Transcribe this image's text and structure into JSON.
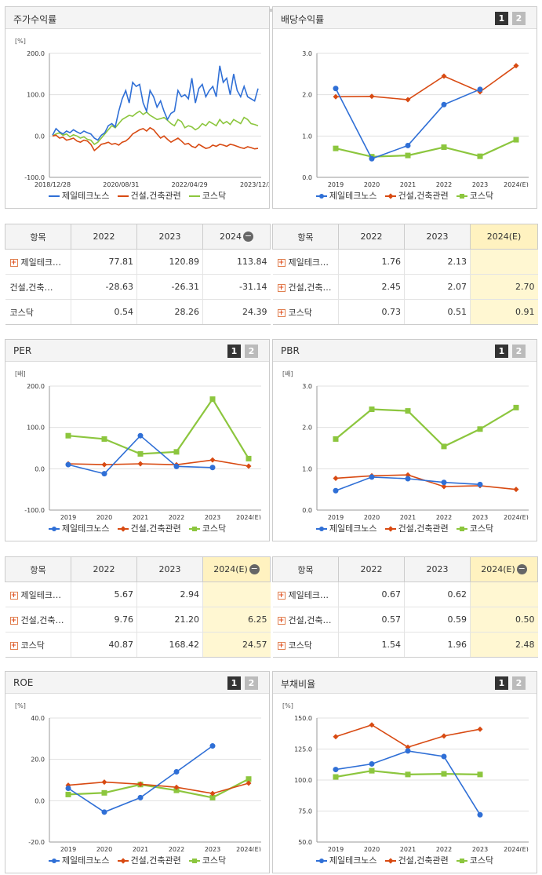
{
  "colors": {
    "jeil": "#2f6fd6",
    "const": "#d84a12",
    "kosdaq": "#8cc63e"
  },
  "series_names": [
    "제일테크노스",
    "건설,건축관련",
    "코스닥"
  ],
  "charts": [
    {
      "id": "price",
      "title": "주가수익률",
      "unit": "[%]",
      "pager": false,
      "type": "line",
      "ylim": [
        -100,
        200
      ],
      "yticks": [
        "200.0",
        "100.0",
        "0.0",
        "-100.0"
      ],
      "xticks": [
        "2018/12/28",
        "2020/08/31",
        "2022/04/29",
        "2023/12/28"
      ],
      "x_count": 60,
      "series": [
        {
          "name": "제일테크노스",
          "values": [
            2,
            18,
            10,
            5,
            12,
            8,
            15,
            10,
            6,
            12,
            8,
            5,
            -5,
            -10,
            2,
            8,
            25,
            30,
            22,
            60,
            90,
            110,
            80,
            130,
            120,
            125,
            80,
            60,
            110,
            95,
            70,
            85,
            60,
            40,
            55,
            60,
            110,
            95,
            100,
            90,
            140,
            80,
            115,
            125,
            95,
            110,
            120,
            95,
            170,
            130,
            140,
            100,
            150,
            110,
            95,
            120,
            95,
            90,
            85,
            115
          ]
        },
        {
          "name": "건설,건축관련",
          "values": [
            0,
            2,
            -5,
            -3,
            -10,
            -8,
            -5,
            -12,
            -15,
            -10,
            -12,
            -20,
            -35,
            -28,
            -20,
            -18,
            -15,
            -20,
            -18,
            -22,
            -15,
            -12,
            -5,
            5,
            10,
            15,
            18,
            12,
            20,
            15,
            5,
            -5,
            0,
            -8,
            -15,
            -10,
            -5,
            -12,
            -20,
            -18,
            -25,
            -28,
            -20,
            -25,
            -30,
            -28,
            -22,
            -25,
            -20,
            -22,
            -25,
            -20,
            -22,
            -25,
            -28,
            -30,
            -26,
            -28,
            -31,
            -30
          ]
        },
        {
          "name": "코스닥",
          "values": [
            0,
            5,
            8,
            2,
            5,
            -2,
            3,
            0,
            -5,
            -2,
            -8,
            -10,
            -20,
            -15,
            -5,
            5,
            15,
            25,
            20,
            30,
            40,
            45,
            50,
            48,
            55,
            60,
            52,
            58,
            50,
            45,
            40,
            42,
            45,
            38,
            30,
            25,
            40,
            35,
            20,
            25,
            22,
            15,
            20,
            30,
            25,
            35,
            30,
            25,
            40,
            30,
            35,
            28,
            40,
            35,
            30,
            45,
            40,
            30,
            28,
            25
          ]
        }
      ]
    },
    {
      "id": "div",
      "title": "배당수익률",
      "unit": "",
      "pager": true,
      "type": "line-dots",
      "ylim": [
        0,
        3
      ],
      "yticks": [
        "3.0",
        "2.0",
        "1.0",
        "0.0"
      ],
      "xticks": [
        "2019",
        "2020",
        "2021",
        "2022",
        "2023",
        "2024(E)"
      ],
      "series": [
        {
          "name": "제일테크노스",
          "values": [
            2.15,
            0.45,
            0.77,
            1.76,
            2.13,
            null
          ]
        },
        {
          "name": "건설,건축관련",
          "values": [
            1.95,
            1.96,
            1.88,
            2.45,
            2.07,
            2.7
          ]
        },
        {
          "name": "코스닥",
          "values": [
            0.7,
            0.5,
            0.53,
            0.73,
            0.51,
            0.91
          ]
        }
      ]
    },
    {
      "id": "per",
      "title": "PER",
      "unit": "[배]",
      "pager": true,
      "type": "line-dots",
      "ylim": [
        -100,
        200
      ],
      "yticks": [
        "200.0",
        "100.0",
        "0.0",
        "-100.0"
      ],
      "xticks": [
        "2019",
        "2020",
        "2021",
        "2022",
        "2023",
        "2024(E)"
      ],
      "series": [
        {
          "name": "제일테크노스",
          "values": [
            10,
            -12,
            80,
            5.67,
            2.94,
            null
          ]
        },
        {
          "name": "건설,건축관련",
          "values": [
            12,
            10,
            12,
            9.76,
            21.2,
            6.25
          ]
        },
        {
          "name": "코스닥",
          "values": [
            80,
            72,
            36,
            40.87,
            168.42,
            24.57
          ]
        }
      ]
    },
    {
      "id": "pbr",
      "title": "PBR",
      "unit": "[배]",
      "pager": true,
      "type": "line-dots",
      "ylim": [
        0,
        3
      ],
      "yticks": [
        "3.0",
        "2.0",
        "1.0",
        "0.0"
      ],
      "xticks": [
        "2019",
        "2020",
        "2021",
        "2022",
        "2023",
        "2024(E)"
      ],
      "series": [
        {
          "name": "제일테크노스",
          "values": [
            0.47,
            0.8,
            0.76,
            0.67,
            0.62,
            null
          ]
        },
        {
          "name": "건설,건축관련",
          "values": [
            0.77,
            0.83,
            0.85,
            0.57,
            0.59,
            0.5
          ]
        },
        {
          "name": "코스닥",
          "values": [
            1.72,
            2.44,
            2.4,
            1.54,
            1.96,
            2.48
          ]
        }
      ]
    },
    {
      "id": "roe",
      "title": "ROE",
      "unit": "[%]",
      "pager": true,
      "type": "line-dots",
      "ylim": [
        -20,
        40
      ],
      "yticks": [
        "40.0",
        "20.0",
        "0.0",
        "-20.0"
      ],
      "xticks": [
        "2019",
        "2020",
        "2021",
        "2022",
        "2023",
        "2024(E)"
      ],
      "series": [
        {
          "name": "제일테크노스",
          "values": [
            6,
            -5.5,
            1.5,
            14,
            26.5,
            null
          ]
        },
        {
          "name": "건설,건축관련",
          "values": [
            7.5,
            9,
            8,
            6.5,
            3.5,
            8.5
          ]
        },
        {
          "name": "코스닥",
          "values": [
            3,
            3.8,
            7.8,
            5,
            1.5,
            10.5
          ]
        }
      ]
    },
    {
      "id": "debt",
      "title": "부채비율",
      "unit": "[%]",
      "pager": true,
      "type": "line-dots",
      "ylim": [
        50,
        150
      ],
      "yticks": [
        "150.0",
        "125.0",
        "100.0",
        "75.0",
        "50.0"
      ],
      "xticks": [
        "2019",
        "2020",
        "2021",
        "2022",
        "2023",
        "2024(E)"
      ],
      "series": [
        {
          "name": "제일테크노스",
          "values": [
            108.5,
            113,
            123.5,
            119,
            72,
            null
          ]
        },
        {
          "name": "건설,건축관련",
          "values": [
            135,
            144.5,
            126.5,
            135.5,
            141,
            null
          ]
        },
        {
          "name": "코스닥",
          "values": [
            102.5,
            107.5,
            104.5,
            105,
            104.5,
            null
          ]
        }
      ]
    }
  ],
  "tables": [
    {
      "id": "t-price",
      "headers": [
        "항목",
        "2022",
        "2023",
        "2024"
      ],
      "minus": true,
      "highlight_last": false,
      "rows": [
        {
          "name": "제일테크…",
          "plus": true,
          "values": [
            "77.81",
            "120.89",
            "113.84"
          ]
        },
        {
          "name": "건설,건축…",
          "plus": false,
          "values": [
            "-28.63",
            "-26.31",
            "-31.14"
          ]
        },
        {
          "name": "코스닥",
          "plus": false,
          "values": [
            "0.54",
            "28.26",
            "24.39"
          ]
        }
      ]
    },
    {
      "id": "t-div",
      "headers": [
        "항목",
        "2022",
        "2023",
        "2024(E)"
      ],
      "minus": false,
      "highlight_last": true,
      "rows": [
        {
          "name": "제일테크…",
          "plus": true,
          "values": [
            "1.76",
            "2.13",
            ""
          ]
        },
        {
          "name": "건설,건축…",
          "plus": true,
          "values": [
            "2.45",
            "2.07",
            "2.70"
          ]
        },
        {
          "name": "코스닥",
          "plus": true,
          "values": [
            "0.73",
            "0.51",
            "0.91"
          ]
        }
      ]
    },
    {
      "id": "t-per",
      "headers": [
        "항목",
        "2022",
        "2023",
        "2024(E)"
      ],
      "minus": true,
      "highlight_last": true,
      "rows": [
        {
          "name": "제일테크…",
          "plus": true,
          "values": [
            "5.67",
            "2.94",
            ""
          ]
        },
        {
          "name": "건설,건축…",
          "plus": true,
          "values": [
            "9.76",
            "21.20",
            "6.25"
          ]
        },
        {
          "name": "코스닥",
          "plus": true,
          "values": [
            "40.87",
            "168.42",
            "24.57"
          ]
        }
      ]
    },
    {
      "id": "t-pbr",
      "headers": [
        "항목",
        "2022",
        "2023",
        "2024(E)"
      ],
      "minus": true,
      "highlight_last": true,
      "rows": [
        {
          "name": "제일테크…",
          "plus": true,
          "values": [
            "0.67",
            "0.62",
            ""
          ]
        },
        {
          "name": "건설,건축…",
          "plus": true,
          "values": [
            "0.57",
            "0.59",
            "0.50"
          ]
        },
        {
          "name": "코스닥",
          "plus": true,
          "values": [
            "1.54",
            "1.96",
            "2.48"
          ]
        }
      ]
    }
  ]
}
